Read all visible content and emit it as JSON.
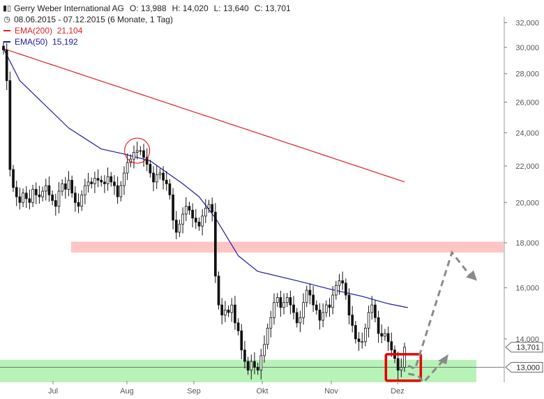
{
  "header": {
    "title": "Gerry Weber International AG",
    "o_label": "O:",
    "o_value": "13,988",
    "h_label": "H:",
    "h_value": "14,020",
    "l_label": "L:",
    "l_value": "13,640",
    "c_label": "C:",
    "c_value": "13,701",
    "range": "08.06.2015 - 07.12.2015 (6 Monate, 1 Tag)",
    "ema200_label": "EMA(200)",
    "ema200_value": "21,104",
    "ema50_label": "EMA(50)",
    "ema50_value": "15,192",
    "icon": "candlestick-icon"
  },
  "chart_data": {
    "type": "candlestick",
    "title": "Gerry Weber International AG",
    "x_ticks": [
      "Jul",
      "Aug",
      "Sep",
      "Okt",
      "Nov",
      "Dez"
    ],
    "y_ticks": [
      "14,000",
      "16,000",
      "18,000",
      "20,000",
      "22,000",
      "24,000",
      "26,000",
      "28,000",
      "30,000",
      "32,000"
    ],
    "y_tick_values": [
      14,
      16,
      18,
      20,
      22,
      24,
      26,
      28,
      30,
      32
    ],
    "ylim": [
      12.5,
      32.5
    ],
    "scale": "log",
    "grid": false,
    "price_labels": [
      {
        "label": "13,701",
        "value": 13.701
      },
      {
        "label": "13,000",
        "value": 13.0
      }
    ],
    "close_series": [
      29.8,
      27.5,
      21.8,
      20.8,
      20.3,
      20.0,
      20.5,
      20.2,
      20.0,
      20.7,
      20.4,
      20.3,
      20.6,
      20.9,
      20.4,
      20.1,
      19.8,
      20.6,
      21.0,
      20.7,
      21.2,
      20.5,
      20.0,
      19.8,
      20.4,
      20.9,
      21.1,
      21.0,
      21.3,
      21.2,
      21.1,
      21.0,
      21.4,
      21.1,
      20.9,
      20.3,
      20.9,
      21.6,
      22.2,
      22.4,
      22.8,
      22.9,
      22.9,
      22.5,
      22.1,
      21.6,
      21.1,
      21.5,
      21.6,
      21.2,
      21.0,
      20.4,
      19.1,
      18.5,
      18.9,
      19.4,
      19.8,
      19.6,
      19.2,
      19.0,
      18.8,
      19.3,
      19.7,
      19.9,
      19.5,
      16.5,
      15.3,
      14.9,
      15.1,
      15.0,
      15.3,
      14.6,
      14.3,
      13.6,
      13.2,
      12.9,
      13.2,
      13.0,
      12.9,
      13.4,
      13.8,
      14.4,
      14.8,
      15.4,
      15.6,
      15.2,
      15.4,
      15.6,
      15.3,
      15.0,
      14.6,
      14.8,
      15.4,
      15.9,
      15.7,
      15.3,
      15.1,
      14.7,
      15.0,
      15.3,
      15.2,
      15.7,
      16.1,
      16.3,
      16.2,
      15.7,
      14.9,
      14.5,
      14.0,
      13.9,
      13.9,
      14.4,
      15.0,
      15.3,
      14.8,
      14.2,
      14.1,
      14.2,
      13.9,
      13.6,
      13.3,
      12.9,
      13.0,
      13.7
    ],
    "ema200": {
      "name": "EMA(200)",
      "start": 29.9,
      "end": 21.104
    },
    "ema50": {
      "name": "EMA(50)",
      "points": [
        [
          0,
          29.9
        ],
        [
          5,
          27.5
        ],
        [
          20,
          24.3
        ],
        [
          30,
          23.0
        ],
        [
          37,
          22.7
        ],
        [
          45,
          22.3
        ],
        [
          55,
          21.0
        ],
        [
          60,
          20.3
        ],
        [
          65,
          19.2
        ],
        [
          72,
          17.4
        ],
        [
          78,
          16.7
        ],
        [
          90,
          16.3
        ],
        [
          100,
          15.95
        ],
        [
          110,
          15.65
        ],
        [
          118,
          15.35
        ],
        [
          124,
          15.192
        ]
      ]
    },
    "annotations": {
      "resistance_zone": [
        17.55,
        18.05
      ],
      "support_zone": [
        12.5,
        13.25
      ],
      "support_line": 13.0,
      "circle_index": 41,
      "box_index": 122
    },
    "colors": {
      "candle": "#111111",
      "ema200": "#e02020",
      "ema50": "#1a1aa8",
      "resistance_zone": "#ffc4c4",
      "support_zone": "#b7f2b7",
      "highlight_box": "#e80000",
      "circle": "#e00000",
      "projection": "#8a8a8a"
    }
  }
}
